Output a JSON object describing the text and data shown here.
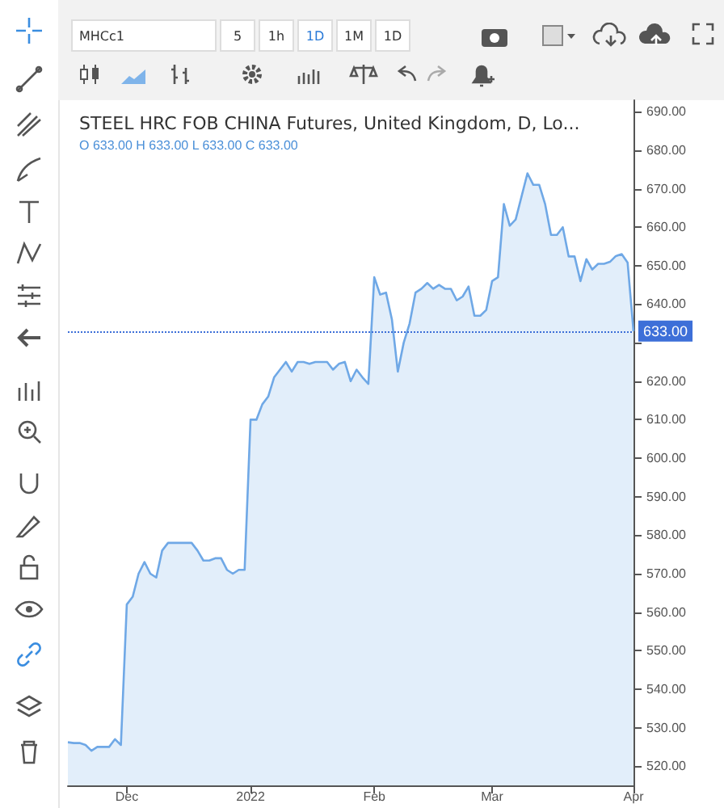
{
  "chart_data": {
    "type": "area",
    "title": "STEEL HRC FOB CHINA Futures, United Kingdom, D, Lo...",
    "subtitle": "O 633.00 H 633.00 L 633.00 C 633.00",
    "annotations": [
      "MHCc1",
      "5",
      "1h",
      "1D",
      "1M",
      "1D"
    ],
    "categories": [
      null,
      null,
      null,
      null,
      null,
      null,
      null,
      null,
      null,
      null,
      "Dec",
      null,
      null,
      null,
      null,
      null,
      null,
      null,
      null,
      null,
      null,
      null,
      null,
      null,
      null,
      null,
      null,
      null,
      null,
      null,
      null,
      "2022",
      null,
      null,
      null,
      null,
      null,
      null,
      null,
      null,
      null,
      null,
      null,
      null,
      null,
      null,
      null,
      null,
      null,
      null,
      null,
      null,
      "Feb",
      null,
      null,
      null,
      null,
      null,
      null,
      null,
      null,
      null,
      null,
      null,
      null,
      null,
      null,
      null,
      null,
      null,
      null,
      null,
      "Mar",
      null,
      null,
      null,
      null,
      null,
      null,
      null,
      null,
      null,
      null,
      null,
      null,
      null,
      null,
      null,
      null,
      null,
      null,
      null,
      null,
      null,
      null,
      null,
      "Apr"
    ],
    "series": [
      {
        "color": "#6fa8e6",
        "values": [
          526.2,
          526,
          526,
          525.5,
          524,
          525,
          525,
          525,
          527,
          525.5,
          562,
          564,
          570,
          573,
          570,
          569,
          576,
          578,
          578,
          578,
          578,
          578,
          576,
          573.4,
          573.4,
          574,
          574,
          571,
          570,
          571,
          571,
          610,
          610,
          614,
          616,
          621,
          623,
          625,
          622.5,
          625,
          625,
          624.5,
          625,
          625,
          625,
          623,
          624.5,
          625,
          620,
          623,
          621,
          619.3,
          647,
          642.5,
          643,
          636,
          622.5,
          630,
          635,
          643,
          644,
          645.5,
          644,
          645,
          644,
          644,
          641,
          642,
          644.6,
          637,
          637,
          638.5,
          646,
          647,
          666,
          660.4,
          662,
          668,
          674,
          671,
          671,
          666,
          658,
          658,
          660,
          652.4,
          652.4,
          646,
          651.7,
          649,
          650.5,
          650.5,
          651,
          652.5,
          653,
          650.8,
          633
        ]
      }
    ],
    "ylim": [
      515,
      693
    ],
    "yticks": [
      {
        "value": 520,
        "label": "520.00"
      },
      {
        "value": 530,
        "label": "530.00"
      },
      {
        "value": 540,
        "label": "540.00"
      },
      {
        "value": 550,
        "label": "550.00"
      },
      {
        "value": 560,
        "label": "560.00"
      },
      {
        "value": 570,
        "label": "570.00"
      },
      {
        "value": 580,
        "label": "580.00"
      },
      {
        "value": 590,
        "label": "590.00"
      },
      {
        "value": 600,
        "label": "600.00"
      },
      {
        "value": 610,
        "label": "610.00"
      },
      {
        "value": 620,
        "label": "620.00"
      },
      {
        "value": 630,
        "label": null
      },
      {
        "value": 640,
        "label": "640.00"
      },
      {
        "value": 650,
        "label": "650.00"
      },
      {
        "value": 660,
        "label": "660.00"
      },
      {
        "value": 670,
        "label": "670.00"
      },
      {
        "value": 680,
        "label": "680.00"
      },
      {
        "value": 690,
        "label": "690.00"
      }
    ],
    "ref_lines": [
      {
        "axis": "y",
        "value": 633,
        "label": "633.00",
        "color": "#3d6fd8",
        "line_style": "dotted"
      }
    ],
    "grid": false,
    "marker": "none"
  }
}
